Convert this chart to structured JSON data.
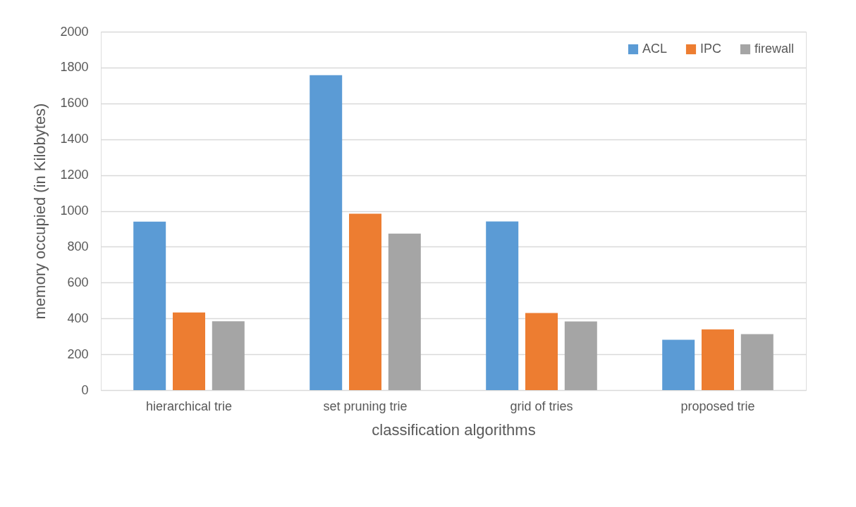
{
  "chart_data": {
    "type": "bar",
    "xlabel": "classification algorithms",
    "ylabel": "memory occupied (in Kilobytes)",
    "categories": [
      "hierarchical trie",
      "set pruning trie",
      "grid of tries",
      "proposed trie"
    ],
    "series": [
      {
        "name": "ACL",
        "color": "#5b9bd5",
        "values": [
          940,
          1757,
          941,
          281
        ]
      },
      {
        "name": "IPC",
        "color": "#ed7d31",
        "values": [
          433,
          984,
          430,
          339
        ]
      },
      {
        "name": "firewall",
        "color": "#a5a5a5",
        "values": [
          384,
          873,
          383,
          312
        ]
      }
    ],
    "ylim": [
      0,
      2000
    ],
    "yticks": [
      0,
      200,
      400,
      600,
      800,
      1000,
      1200,
      1400,
      1600,
      1800,
      2000
    ],
    "grid": "y",
    "legend": "top right"
  }
}
